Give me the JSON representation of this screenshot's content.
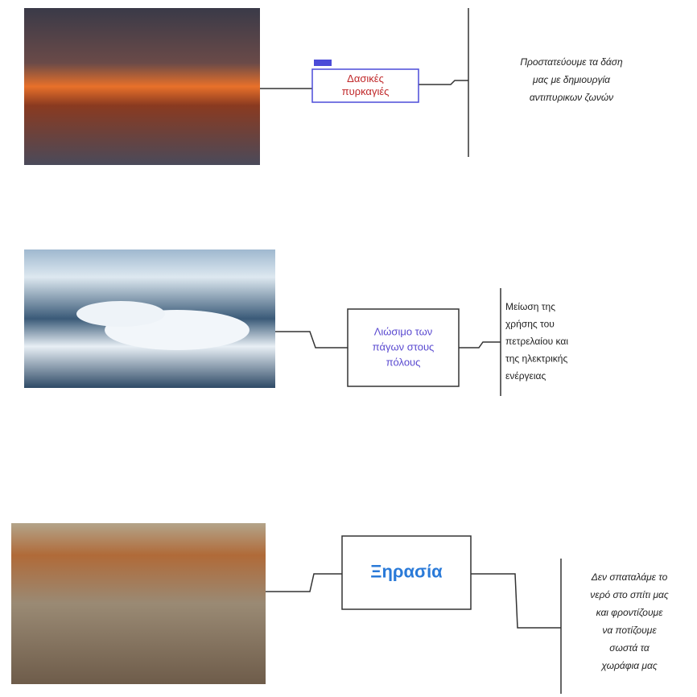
{
  "rows": [
    {
      "box": [
        "Δασικές",
        "πυρκαγιές"
      ],
      "description": [
        "Προστατεύουμε τα δάση",
        "μας με δημιουργία",
        "αντιπυρικων ζωνών"
      ]
    },
    {
      "box": [
        "Λιώσιμο των",
        "πάγων στους",
        "πόλους"
      ],
      "description": [
        "Μείωση της",
        "χρήσης του",
        "πετρελαίου και",
        "της ηλεκτρικής",
        "ενέργειας"
      ]
    },
    {
      "box": [
        "Ξηρασία"
      ],
      "description": [
        "Δεν σπαταλάμε το",
        "νερό στο σπίτι μας",
        "και φροντίζουμε",
        "να ποτίζουμε",
        "σωστά τα",
        "χωράφια μας"
      ]
    }
  ]
}
